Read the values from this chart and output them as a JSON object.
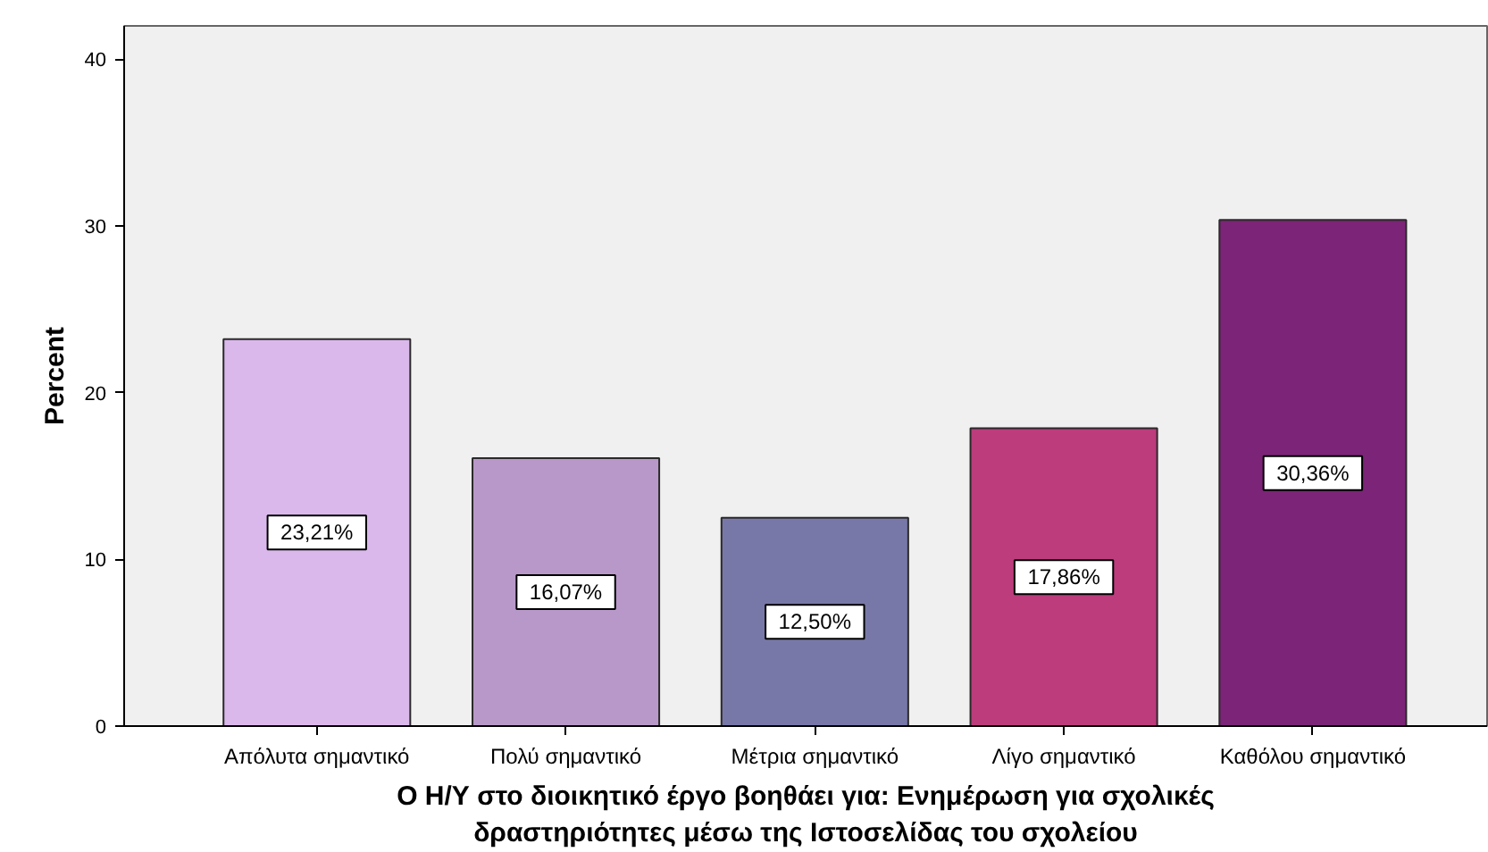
{
  "chart_data": {
    "type": "bar",
    "xlabel": "Ο Η/Υ στο διοικητικό έργο βοηθάει για: Ενημέρωση για σχολικές δραστηριότητες μέσω της Ιστοσελίδας του σχολείου",
    "ylabel": "Percent",
    "categories": [
      "Απόλυτα σημαντικό",
      "Πολύ σημαντικό",
      "Μέτρια σημαντικό",
      "Λίγο σημαντικό",
      "Καθόλου σημαντικό"
    ],
    "values": [
      23.21,
      16.07,
      12.5,
      17.86,
      30.36
    ],
    "colors": [
      "#dab8ec",
      "#b898c8",
      "#7878a8",
      "#bc3c7c",
      "#7c2478"
    ],
    "value_labels": [
      "23,21%",
      "16,07%",
      "12,50%",
      "17,86%",
      "30,36%"
    ],
    "ylim": [
      0,
      42
    ],
    "yticks": [
      0,
      10,
      20,
      30,
      40
    ],
    "grid": false
  }
}
